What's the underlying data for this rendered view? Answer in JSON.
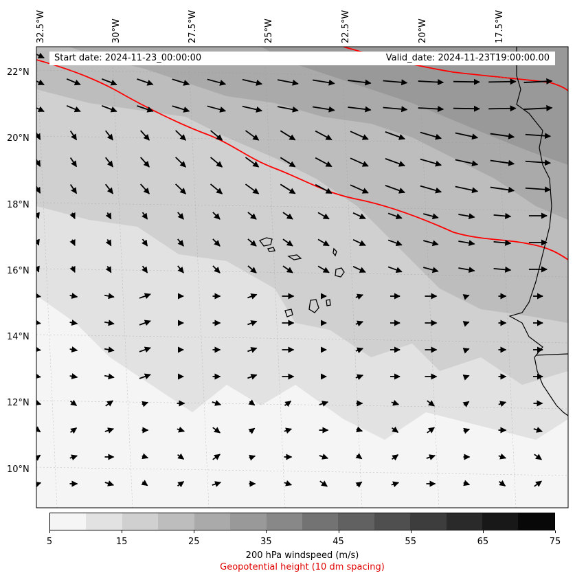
{
  "map": {
    "start_date": "Start date: 2024-11-23_00:00:00",
    "valid_date": "Valid_date: 2024-11-23T19:00:00.00",
    "lon_labels": [
      "32.5°W",
      "30°W",
      "27.5°W",
      "25°W",
      "22.5°W",
      "20°W",
      "17.5°W"
    ],
    "lat_labels": [
      "22°N",
      "20°N",
      "18°N",
      "16°N",
      "14°N",
      "12°N",
      "10°N"
    ],
    "contour_color": "#ff0000"
  },
  "colorbar": {
    "label": "200 hPa windspeed (m/s)",
    "sublabel": "Geopotential height (10 dm spacing)",
    "tick_labels": [
      "5",
      "15",
      "25",
      "35",
      "45",
      "55",
      "65",
      "75"
    ],
    "levels": [
      5,
      10,
      15,
      20,
      25,
      30,
      35,
      40,
      45,
      50,
      55,
      60,
      65,
      70,
      75
    ],
    "colors": [
      "#f5f5f5",
      "#e2e2e2",
      "#d0d0d0",
      "#bdbdbd",
      "#aaaaaa",
      "#999999",
      "#888888",
      "#737373",
      "#616161",
      "#4f4f4f",
      "#3d3d3d",
      "#2a2a2a",
      "#181818",
      "#080808"
    ]
  }
}
